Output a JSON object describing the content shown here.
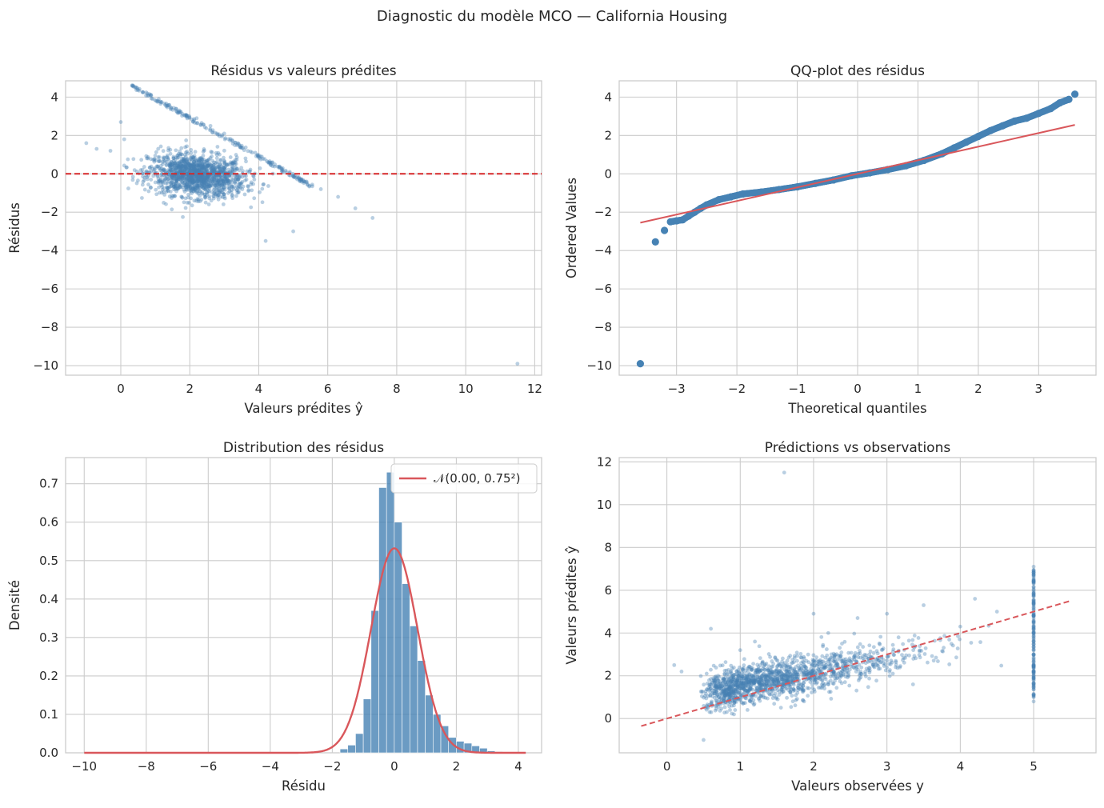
{
  "suptitle": "Diagnostic du modèle MCO — California Housing",
  "colors": {
    "points": "#4682b4",
    "reference": "#d62728",
    "fit": "#d9575b",
    "grid": "#cccccc"
  },
  "chart_data": [
    {
      "id": "residuals_vs_fitted",
      "type": "scatter",
      "title": "Résidus vs valeurs prédites",
      "xlabel": "Valeurs prédites ŷ",
      "ylabel": "Résidus",
      "xlim": [
        -1.6,
        12.2
      ],
      "ylim": [
        -10.5,
        4.85
      ],
      "xticks": [
        0,
        2,
        4,
        6,
        8,
        10,
        12
      ],
      "yticks": [
        4,
        2,
        0,
        -2,
        -4,
        -6,
        -8,
        -10
      ],
      "xtick_labels": [
        "0",
        "2",
        "4",
        "6",
        "8",
        "10",
        "12"
      ],
      "ytick_labels": [
        "4",
        "2",
        "0",
        "−2",
        "−4",
        "−6",
        "−8",
        "−10"
      ],
      "reference_line": {
        "y": 0,
        "style": "dashed",
        "color": "#d62728"
      },
      "points": [
        [
          -1.0,
          1.6
        ],
        [
          -0.7,
          1.3
        ],
        [
          -0.3,
          1.2
        ],
        [
          0.0,
          2.7
        ],
        [
          0.1,
          1.8
        ],
        [
          0.8,
          4.1
        ],
        [
          1.1,
          3.9
        ],
        [
          1.4,
          3.6
        ],
        [
          1.7,
          3.3
        ],
        [
          1.9,
          3.0
        ],
        [
          2.2,
          2.9
        ],
        [
          2.6,
          2.5
        ],
        [
          3.0,
          2.1
        ],
        [
          3.4,
          1.6
        ],
        [
          3.9,
          1.1
        ],
        [
          4.4,
          0.6
        ],
        [
          4.9,
          0.1
        ],
        [
          5.3,
          -0.4
        ],
        [
          5.8,
          -0.8
        ],
        [
          6.3,
          -1.2
        ],
        [
          6.8,
          -1.8
        ],
        [
          7.3,
          -2.3
        ],
        [
          4.2,
          -3.5
        ],
        [
          5.0,
          -3.0
        ],
        [
          11.5,
          -9.9
        ]
      ],
      "cloud_centre": {
        "x": 2.2,
        "y": -0.1
      }
    },
    {
      "id": "qq_plot",
      "type": "scatter",
      "title": "QQ-plot des résidus",
      "xlabel": "Theoretical quantiles",
      "ylabel": "Ordered Values",
      "xlim": [
        -3.95,
        3.95
      ],
      "ylim": [
        -10.5,
        4.85
      ],
      "xticks": [
        -3,
        -2,
        -1,
        0,
        1,
        2,
        3
      ],
      "yticks": [
        4,
        2,
        0,
        -2,
        -4,
        -6,
        -8,
        -10
      ],
      "xtick_labels": [
        "−3",
        "−2",
        "−1",
        "0",
        "1",
        "2",
        "3"
      ],
      "ytick_labels": [
        "4",
        "2",
        "0",
        "−2",
        "−4",
        "−6",
        "−8",
        "−10"
      ],
      "fit_line": {
        "x": [
          -3.6,
          3.6
        ],
        "y": [
          -2.55,
          2.55
        ]
      },
      "points": [
        [
          -3.6,
          -9.9
        ],
        [
          -3.35,
          -3.55
        ],
        [
          -3.2,
          -2.95
        ],
        [
          -3.1,
          -2.5
        ],
        [
          -3.0,
          -2.45
        ],
        [
          -2.9,
          -2.4
        ],
        [
          -2.8,
          -2.2
        ],
        [
          -2.7,
          -2.0
        ],
        [
          -2.6,
          -1.8
        ],
        [
          -2.5,
          -1.62
        ],
        [
          -2.3,
          -1.35
        ],
        [
          -2.1,
          -1.2
        ],
        [
          -1.9,
          -1.05
        ],
        [
          -1.6,
          -0.95
        ],
        [
          -1.3,
          -0.82
        ],
        [
          -1.0,
          -0.68
        ],
        [
          -0.7,
          -0.5
        ],
        [
          -0.4,
          -0.32
        ],
        [
          -0.1,
          -0.1
        ],
        [
          0.2,
          0.05
        ],
        [
          0.5,
          0.22
        ],
        [
          0.8,
          0.42
        ],
        [
          1.1,
          0.7
        ],
        [
          1.4,
          1.05
        ],
        [
          1.6,
          1.35
        ],
        [
          1.8,
          1.65
        ],
        [
          2.0,
          1.95
        ],
        [
          2.2,
          2.25
        ],
        [
          2.4,
          2.5
        ],
        [
          2.6,
          2.75
        ],
        [
          2.8,
          2.9
        ],
        [
          3.0,
          3.15
        ],
        [
          3.2,
          3.4
        ],
        [
          3.35,
          3.7
        ],
        [
          3.5,
          3.88
        ],
        [
          3.6,
          4.15
        ]
      ]
    },
    {
      "id": "residual_distribution",
      "type": "bar",
      "title": "Distribution des résidus",
      "xlabel": "Résidu",
      "ylabel": "Densité",
      "xlim": [
        -10.6,
        4.75
      ],
      "ylim": [
        0,
        0.768
      ],
      "xticks": [
        -10,
        -8,
        -6,
        -4,
        -2,
        0,
        2,
        4
      ],
      "yticks": [
        0.0,
        0.1,
        0.2,
        0.3,
        0.4,
        0.5,
        0.6,
        0.7
      ],
      "xtick_labels": [
        "−10",
        "−8",
        "−6",
        "−4",
        "−2",
        "0",
        "2",
        "4"
      ],
      "ytick_labels": [
        "0.0",
        "0.1",
        "0.2",
        "0.3",
        "0.4",
        "0.5",
        "0.6",
        "0.7"
      ],
      "bin_width": 0.25,
      "bins": [
        [
          -1.75,
          0.01
        ],
        [
          -1.5,
          0.02
        ],
        [
          -1.25,
          0.05
        ],
        [
          -1.0,
          0.14
        ],
        [
          -0.75,
          0.37
        ],
        [
          -0.5,
          0.69
        ],
        [
          -0.25,
          0.73
        ],
        [
          0.0,
          0.6
        ],
        [
          0.25,
          0.44
        ],
        [
          0.5,
          0.33
        ],
        [
          0.75,
          0.24
        ],
        [
          1.0,
          0.15
        ],
        [
          1.25,
          0.1
        ],
        [
          1.5,
          0.07
        ],
        [
          1.75,
          0.04
        ],
        [
          2.0,
          0.03
        ],
        [
          2.25,
          0.025
        ],
        [
          2.5,
          0.018
        ],
        [
          2.75,
          0.012
        ],
        [
          3.0,
          0.005
        ],
        [
          3.25,
          0.003
        ]
      ],
      "normal_fit": {
        "mean": 0.0,
        "std": 0.75,
        "label": "𝒩(0.00, 0.75²)"
      },
      "legend": {
        "position": "top-right"
      }
    },
    {
      "id": "predicted_vs_observed",
      "type": "scatter",
      "title": "Prédictions vs observations",
      "xlabel": "Valeurs observées y",
      "ylabel": "Valeurs prédites ŷ",
      "xlim": [
        -0.65,
        5.85
      ],
      "ylim": [
        -1.6,
        12.2
      ],
      "xticks": [
        0,
        1,
        2,
        3,
        4,
        5
      ],
      "yticks": [
        0,
        2,
        4,
        6,
        8,
        10,
        12
      ],
      "xtick_labels": [
        "0",
        "1",
        "2",
        "3",
        "4",
        "5"
      ],
      "ytick_labels": [
        "0",
        "2",
        "4",
        "6",
        "8",
        "10",
        "12"
      ],
      "reference_line": {
        "x": [
          -0.35,
          5.5
        ],
        "y": [
          -0.35,
          5.5
        ],
        "style": "dashed"
      },
      "points": [
        [
          0.1,
          2.5
        ],
        [
          0.2,
          2.2
        ],
        [
          0.5,
          -1.0
        ],
        [
          0.6,
          4.2
        ],
        [
          1.0,
          3.2
        ],
        [
          1.2,
          3.6
        ],
        [
          1.6,
          11.5
        ],
        [
          2.0,
          4.9
        ],
        [
          2.2,
          4.0
        ],
        [
          2.6,
          4.7
        ],
        [
          3.0,
          4.9
        ],
        [
          3.5,
          5.3
        ],
        [
          4.0,
          4.3
        ],
        [
          4.2,
          5.6
        ],
        [
          4.5,
          5.0
        ],
        [
          5.0,
          7.1
        ],
        [
          5.0,
          6.5
        ],
        [
          5.0,
          4.0
        ],
        [
          5.0,
          2.0
        ],
        [
          5.0,
          1.0
        ],
        [
          5.0,
          0.8
        ]
      ],
      "cloud_centre": {
        "x": 1.7,
        "y": 2.0
      },
      "censored_value": 5.0
    }
  ]
}
